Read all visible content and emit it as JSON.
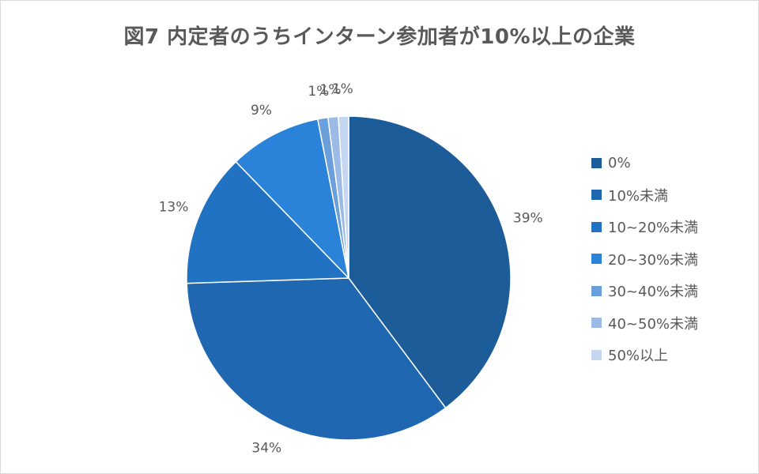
{
  "chart_data": {
    "type": "pie",
    "title": "図7 内定者のうちインターン参加者が10%以上の企業",
    "categories": [
      "0%",
      "10%未満",
      "10~20%未満",
      "20~30%未満",
      "30~40%未満",
      "40~50%未満",
      "50%以上"
    ],
    "values": [
      39,
      34,
      13,
      9,
      1,
      1,
      1
    ],
    "data_labels": [
      "39%",
      "34%",
      "13%",
      "9%",
      "1%",
      "1%",
      "1%"
    ],
    "colors": [
      "#1b5c99",
      "#1f67b1",
      "#2272c4",
      "#2a83d8",
      "#6b9fdc",
      "#9bbbe6",
      "#c4d6f1"
    ],
    "start_angle_deg": 0,
    "direction": "clockwise",
    "legend_position": "right"
  }
}
